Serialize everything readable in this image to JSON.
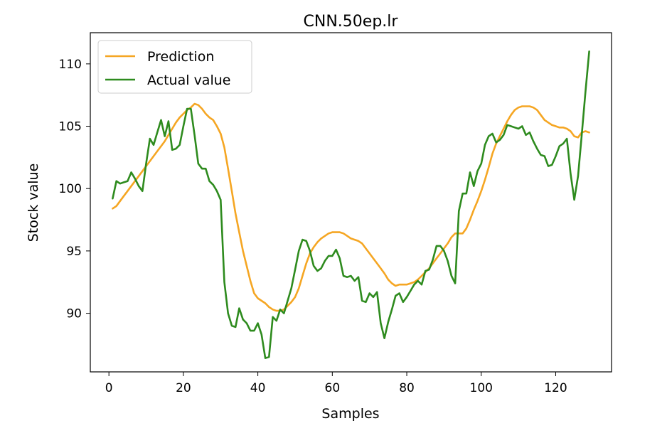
{
  "chart_data": {
    "type": "line",
    "title": "CNN.50ep.lr",
    "xlabel": "Samples",
    "ylabel": "Stock value",
    "xlim": [
      -5,
      135
    ],
    "ylim": [
      85.3,
      112.5
    ],
    "xticks": [
      0,
      20,
      40,
      60,
      80,
      100,
      120
    ],
    "yticks": [
      90,
      95,
      100,
      105,
      110
    ],
    "grid": false,
    "legend_position": "top-left",
    "series": [
      {
        "name": "Prediction",
        "color": "#f5a623",
        "x": [
          1,
          2,
          3,
          4,
          5,
          6,
          7,
          8,
          9,
          10,
          11,
          12,
          13,
          14,
          15,
          16,
          17,
          18,
          19,
          20,
          21,
          22,
          23,
          24,
          25,
          26,
          27,
          28,
          29,
          30,
          31,
          32,
          33,
          34,
          35,
          36,
          37,
          38,
          39,
          40,
          41,
          42,
          43,
          44,
          45,
          46,
          47,
          48,
          49,
          50,
          51,
          52,
          53,
          54,
          55,
          56,
          57,
          58,
          59,
          60,
          61,
          62,
          63,
          64,
          65,
          66,
          67,
          68,
          69,
          70,
          71,
          72,
          73,
          74,
          75,
          76,
          77,
          78,
          79,
          80,
          81,
          82,
          83,
          84,
          85,
          86,
          87,
          88,
          89,
          90,
          91,
          92,
          93,
          94,
          95,
          96,
          97,
          98,
          99,
          100,
          101,
          102,
          103,
          104,
          105,
          106,
          107,
          108,
          109,
          110,
          111,
          112,
          113,
          114,
          115,
          116,
          117,
          118,
          119,
          120,
          121,
          122,
          123,
          124,
          125,
          126,
          127,
          128,
          129
        ],
        "values": [
          98.4,
          98.6,
          99.0,
          99.4,
          99.8,
          100.2,
          100.6,
          101.0,
          101.4,
          101.8,
          102.2,
          102.6,
          103.0,
          103.4,
          103.8,
          104.3,
          104.8,
          105.3,
          105.7,
          106.0,
          106.3,
          106.5,
          106.8,
          106.7,
          106.4,
          106.0,
          105.7,
          105.5,
          105.0,
          104.4,
          103.3,
          101.6,
          99.8,
          98.0,
          96.5,
          95.0,
          93.8,
          92.6,
          91.6,
          91.2,
          91.0,
          90.8,
          90.5,
          90.3,
          90.2,
          90.2,
          90.3,
          90.6,
          90.9,
          91.3,
          92.0,
          93.0,
          94.0,
          94.8,
          95.3,
          95.7,
          96.0,
          96.2,
          96.4,
          96.5,
          96.5,
          96.5,
          96.4,
          96.2,
          96.0,
          95.9,
          95.8,
          95.6,
          95.2,
          94.8,
          94.4,
          94.0,
          93.6,
          93.2,
          92.7,
          92.4,
          92.2,
          92.3,
          92.3,
          92.3,
          92.4,
          92.5,
          92.7,
          93.0,
          93.3,
          93.6,
          94.0,
          94.4,
          94.8,
          95.2,
          95.6,
          96.1,
          96.4,
          96.4,
          96.4,
          96.8,
          97.5,
          98.3,
          99.0,
          99.8,
          100.7,
          101.7,
          102.8,
          103.6,
          104.2,
          104.8,
          105.4,
          105.9,
          106.3,
          106.5,
          106.6,
          106.6,
          106.6,
          106.5,
          106.3,
          105.9,
          105.5,
          105.3,
          105.1,
          105.0,
          104.9,
          104.9,
          104.8,
          104.6,
          104.2,
          104.1,
          104.5,
          104.6,
          104.5
        ]
      },
      {
        "name": "Actual value",
        "color": "#2e8b1e",
        "x": [
          1,
          2,
          3,
          4,
          5,
          6,
          7,
          8,
          9,
          10,
          11,
          12,
          13,
          14,
          15,
          16,
          17,
          18,
          19,
          20,
          21,
          22,
          23,
          24,
          25,
          26,
          27,
          28,
          29,
          30,
          31,
          32,
          33,
          34,
          35,
          36,
          37,
          38,
          39,
          40,
          41,
          42,
          43,
          44,
          45,
          46,
          47,
          48,
          49,
          50,
          51,
          52,
          53,
          54,
          55,
          56,
          57,
          58,
          59,
          60,
          61,
          62,
          63,
          64,
          65,
          66,
          67,
          68,
          69,
          70,
          71,
          72,
          73,
          74,
          75,
          76,
          77,
          78,
          79,
          80,
          81,
          82,
          83,
          84,
          85,
          86,
          87,
          88,
          89,
          90,
          91,
          92,
          93,
          94,
          95,
          96,
          97,
          98,
          99,
          100,
          101,
          102,
          103,
          104,
          105,
          106,
          107,
          108,
          109,
          110,
          111,
          112,
          113,
          114,
          115,
          116,
          117,
          118,
          119,
          120,
          121,
          122,
          123,
          124,
          125,
          126,
          127,
          128,
          129
        ],
        "values": [
          99.2,
          100.6,
          100.4,
          100.5,
          100.6,
          101.3,
          100.8,
          100.2,
          99.8,
          102.0,
          104.0,
          103.5,
          104.5,
          105.5,
          104.2,
          105.4,
          103.1,
          103.2,
          103.5,
          105.0,
          106.4,
          106.4,
          104.3,
          102.0,
          101.6,
          101.6,
          100.6,
          100.3,
          99.8,
          99.1,
          92.5,
          90.0,
          89.0,
          88.9,
          90.4,
          89.5,
          89.2,
          88.6,
          88.6,
          89.2,
          88.3,
          86.4,
          86.5,
          89.7,
          89.4,
          90.3,
          90.0,
          91.0,
          92.0,
          93.5,
          95.0,
          95.9,
          95.8,
          95.0,
          93.8,
          93.4,
          93.6,
          94.2,
          94.6,
          94.6,
          95.1,
          94.4,
          93.0,
          92.9,
          93.0,
          92.6,
          92.9,
          91.0,
          90.9,
          91.6,
          91.3,
          91.7,
          89.2,
          88.0,
          89.3,
          90.3,
          91.4,
          91.6,
          90.9,
          91.3,
          91.8,
          92.3,
          92.6,
          92.3,
          93.4,
          93.5,
          94.3,
          95.4,
          95.4,
          95.0,
          94.2,
          93.0,
          92.4,
          98.2,
          99.6,
          99.6,
          101.3,
          100.2,
          101.4,
          102.0,
          103.5,
          104.2,
          104.4,
          103.7,
          103.9,
          104.3,
          105.1,
          105.0,
          104.9,
          104.8,
          105.0,
          104.3,
          104.5,
          103.8,
          103.2,
          102.7,
          102.6,
          101.8,
          101.9,
          102.6,
          103.4,
          103.6,
          104.0,
          101.2,
          99.1,
          101.0,
          104.3,
          107.8,
          111.0
        ]
      }
    ]
  }
}
